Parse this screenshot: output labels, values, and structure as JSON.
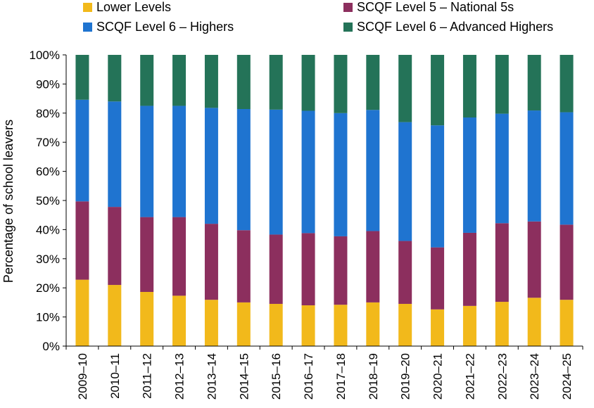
{
  "chart_data": {
    "type": "bar",
    "stacked": true,
    "normalized": true,
    "ylabel": "Percentage of school leavers",
    "xlabel": "",
    "ylim": [
      0,
      100
    ],
    "yticks": [
      "0%",
      "10%",
      "20%",
      "30%",
      "40%",
      "50%",
      "60%",
      "70%",
      "80%",
      "90%",
      "100%"
    ],
    "legend_position": "top",
    "grid": false,
    "categories": [
      "2009–10",
      "2010–11",
      "2011–12",
      "2012–13",
      "2013–14",
      "2014–15",
      "2015–16",
      "2016–17",
      "2017–18",
      "2018–19",
      "2019–20",
      "2020–21",
      "2021–22",
      "2022–23",
      "2023–24",
      "2024–25"
    ],
    "series": [
      {
        "name": "Lower Levels",
        "color": "#F2B91B",
        "values": [
          22.8,
          21.0,
          18.6,
          17.3,
          15.9,
          15.0,
          14.5,
          14.0,
          14.2,
          15.0,
          14.5,
          12.6,
          13.8,
          15.2,
          16.6,
          15.9
        ]
      },
      {
        "name": "SCQF Level 5 – National 5s",
        "color": "#8C2F5E",
        "values": [
          26.9,
          26.8,
          25.7,
          27.0,
          26.1,
          24.8,
          23.8,
          24.8,
          23.5,
          24.5,
          21.6,
          21.3,
          25.1,
          27.0,
          26.2,
          25.8
        ]
      },
      {
        "name": "SCQF Level 6 – Highers",
        "color": "#1F74D0",
        "values": [
          34.9,
          36.2,
          38.2,
          38.2,
          39.8,
          41.6,
          42.9,
          42.0,
          42.3,
          41.6,
          40.8,
          41.9,
          39.6,
          37.6,
          38.1,
          38.6
        ]
      },
      {
        "name": "SCQF Level 6 – Advanced Highers",
        "color": "#247358",
        "values": [
          15.4,
          16.0,
          17.5,
          17.5,
          18.2,
          18.6,
          18.8,
          19.2,
          20.0,
          18.9,
          23.1,
          24.2,
          21.5,
          20.2,
          19.1,
          19.7
        ]
      }
    ]
  }
}
